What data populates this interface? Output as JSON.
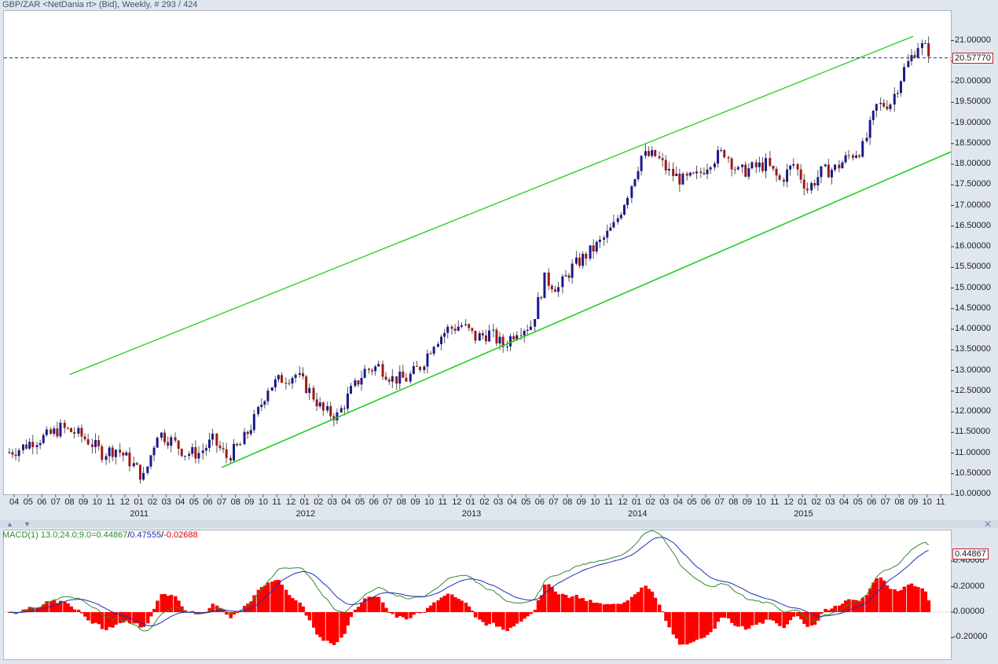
{
  "title": "GBP/ZAR <NetDania rt> (Bid), Weekly, # 293 / 424",
  "price_axis": {
    "ticks": [
      "21.00000",
      "20.50000",
      "20.00000",
      "19.50000",
      "19.00000",
      "18.50000",
      "18.00000",
      "17.50000",
      "17.00000",
      "16.50000",
      "16.00000",
      "15.50000",
      "15.00000",
      "14.50000",
      "14.00000",
      "13.50000",
      "13.00000",
      "12.50000",
      "12.00000",
      "11.50000",
      "11.00000",
      "10.50000",
      "10.00000"
    ],
    "current_value": "20.57770",
    "ylim": [
      10.0,
      21.0
    ]
  },
  "time_axis": {
    "months": [
      "04",
      "05",
      "06",
      "07",
      "08",
      "09",
      "10",
      "11",
      "12",
      "01",
      "02",
      "03",
      "04",
      "05",
      "06",
      "07",
      "08",
      "09",
      "10",
      "11",
      "12",
      "01",
      "02",
      "03",
      "04",
      "05",
      "06",
      "07",
      "08",
      "09",
      "10",
      "11",
      "12",
      "01",
      "02",
      "03",
      "04",
      "05",
      "06",
      "07",
      "08",
      "09",
      "10",
      "11",
      "12",
      "01",
      "02",
      "03",
      "04",
      "05",
      "06",
      "07",
      "08",
      "09",
      "10",
      "11",
      "12",
      "01",
      "02",
      "03",
      "04",
      "05",
      "06",
      "07",
      "08",
      "09",
      "10",
      "11"
    ],
    "years": [
      "2011",
      "2012",
      "2013",
      "2014",
      "2015"
    ]
  },
  "macd": {
    "label_prefix": "MACD(1) 13.0;24.0;9.0=",
    "macd_value": "0.44867",
    "signal_value": "0.47555",
    "hist_value": "-0.02688",
    "separator": "/",
    "current_value": "0.44867",
    "ticks": [
      "0.40000",
      "0.20000",
      "0.00000",
      "-0.20000"
    ],
    "ylim": [
      -0.3,
      0.6
    ]
  },
  "colors": {
    "up_candle": "#1a1a8c",
    "down_candle": "#a01818",
    "channel": "#22cc22",
    "macd_line": "#2e8b2e",
    "signal_line": "#1c2fb8",
    "histogram": "#ff0000",
    "price_line": "#1a3a6a"
  },
  "icons": {
    "close": "close-icon",
    "collapse": "collapse-up-icon",
    "expand": "expand-down-icon"
  },
  "chart_data": [
    {
      "type": "candlestick",
      "title": "GBP/ZAR <NetDania rt> (Bid), Weekly, # 293 / 424",
      "x_label": "",
      "y_label": "",
      "ylim": [
        10.0,
        21.0
      ],
      "current_price": 20.5777,
      "trend_channel": {
        "upper": {
          "from": [
            "2010-08",
            12.9
          ],
          "to": [
            "2015-09",
            21.1
          ]
        },
        "lower": {
          "from": [
            "2011-07",
            10.65
          ],
          "to": [
            "2015-11",
            18.3
          ]
        }
      },
      "monthly_closes": [
        {
          "month": "2010-04",
          "close": 11.1
        },
        {
          "month": "2010-05",
          "close": 11.3
        },
        {
          "month": "2010-06",
          "close": 11.4
        },
        {
          "month": "2010-07",
          "close": 11.6
        },
        {
          "month": "2010-08",
          "close": 11.5
        },
        {
          "month": "2010-09",
          "close": 11.3
        },
        {
          "month": "2010-10",
          "close": 11.0
        },
        {
          "month": "2010-11",
          "close": 11.1
        },
        {
          "month": "2010-12",
          "close": 10.8
        },
        {
          "month": "2011-01",
          "close": 10.4
        },
        {
          "month": "2011-02",
          "close": 11.5
        },
        {
          "month": "2011-03",
          "close": 11.3
        },
        {
          "month": "2011-04",
          "close": 11.0
        },
        {
          "month": "2011-05",
          "close": 11.0
        },
        {
          "month": "2011-06",
          "close": 11.3
        },
        {
          "month": "2011-07",
          "close": 10.9
        },
        {
          "month": "2011-08",
          "close": 11.2
        },
        {
          "month": "2011-09",
          "close": 11.8
        },
        {
          "month": "2011-10",
          "close": 12.6
        },
        {
          "month": "2011-11",
          "close": 12.8
        },
        {
          "month": "2011-12",
          "close": 12.9
        },
        {
          "month": "2012-01",
          "close": 12.5
        },
        {
          "month": "2012-02",
          "close": 12.0
        },
        {
          "month": "2012-03",
          "close": 11.9
        },
        {
          "month": "2012-04",
          "close": 12.5
        },
        {
          "month": "2012-05",
          "close": 13.0
        },
        {
          "month": "2012-06",
          "close": 13.1
        },
        {
          "month": "2012-07",
          "close": 12.8
        },
        {
          "month": "2012-08",
          "close": 12.8
        },
        {
          "month": "2012-09",
          "close": 13.1
        },
        {
          "month": "2012-10",
          "close": 13.7
        },
        {
          "month": "2012-11",
          "close": 14.0
        },
        {
          "month": "2012-12",
          "close": 14.1
        },
        {
          "month": "2013-01",
          "close": 13.8
        },
        {
          "month": "2013-02",
          "close": 13.9
        },
        {
          "month": "2013-03",
          "close": 13.6
        },
        {
          "month": "2013-04",
          "close": 14.0
        },
        {
          "month": "2013-05",
          "close": 14.1
        },
        {
          "month": "2013-06",
          "close": 15.2
        },
        {
          "month": "2013-07",
          "close": 15.0
        },
        {
          "month": "2013-08",
          "close": 15.5
        },
        {
          "month": "2013-09",
          "close": 15.8
        },
        {
          "month": "2013-10",
          "close": 16.1
        },
        {
          "month": "2013-11",
          "close": 16.5
        },
        {
          "month": "2013-12",
          "close": 17.3
        },
        {
          "month": "2014-01",
          "close": 18.2
        },
        {
          "month": "2014-02",
          "close": 18.2
        },
        {
          "month": "2014-03",
          "close": 17.8
        },
        {
          "month": "2014-04",
          "close": 17.6
        },
        {
          "month": "2014-05",
          "close": 17.7
        },
        {
          "month": "2014-06",
          "close": 18.1
        },
        {
          "month": "2014-07",
          "close": 18.3
        },
        {
          "month": "2014-08",
          "close": 17.8
        },
        {
          "month": "2014-09",
          "close": 17.9
        },
        {
          "month": "2014-10",
          "close": 18.0
        },
        {
          "month": "2014-11",
          "close": 17.6
        },
        {
          "month": "2014-12",
          "close": 18.0
        },
        {
          "month": "2015-01",
          "close": 17.4
        },
        {
          "month": "2015-02",
          "close": 17.8
        },
        {
          "month": "2015-03",
          "close": 17.9
        },
        {
          "month": "2015-04",
          "close": 18.2
        },
        {
          "month": "2015-05",
          "close": 18.4
        },
        {
          "month": "2015-06",
          "close": 19.4
        },
        {
          "month": "2015-07",
          "close": 19.5
        },
        {
          "month": "2015-08",
          "close": 20.3
        },
        {
          "month": "2015-09",
          "close": 20.9
        },
        {
          "month": "2015-10",
          "close": 20.7
        },
        {
          "month": "2015-11",
          "close": 20.58
        }
      ]
    },
    {
      "type": "line",
      "title": "MACD(1) 13.0;24.0;9.0",
      "ylim": [
        -0.3,
        0.6
      ],
      "series": [
        {
          "name": "MACD",
          "last": 0.44867
        },
        {
          "name": "Signal",
          "last": 0.47555
        },
        {
          "name": "Histogram",
          "last": -0.02688
        }
      ]
    }
  ]
}
